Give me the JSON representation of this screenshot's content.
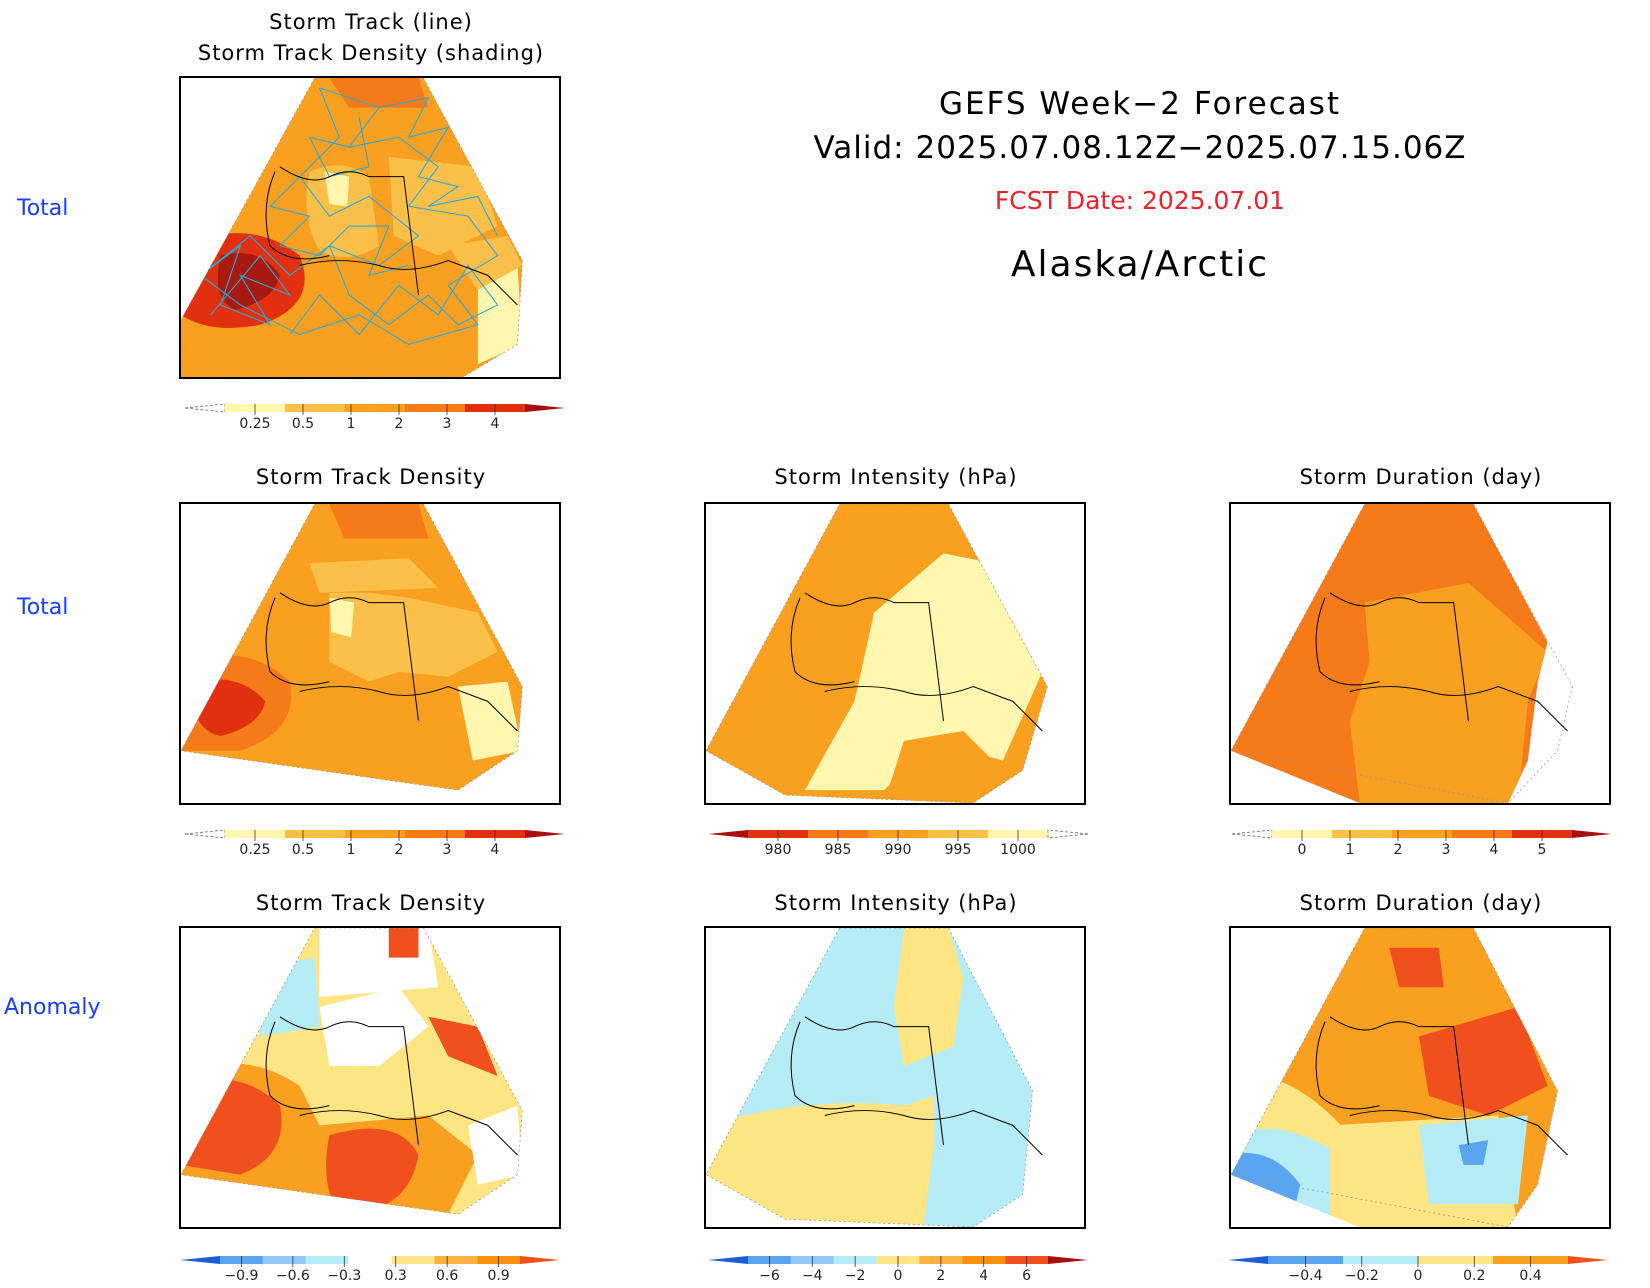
{
  "header": {
    "line1": "GEFS Week−2 Forecast",
    "line2": "Valid: 2025.07.08.12Z−2025.07.15.06Z",
    "fcst": "FCST Date: 2025.07.01",
    "region": "Alaska/Arctic",
    "fcst_color": "#e8232a"
  },
  "rows": {
    "row1": "Total",
    "row2": "Total",
    "row3": "Anomaly"
  },
  "panels": {
    "p0": {
      "title1": "Storm Track (line)",
      "title2": "Storm Track Density (shading)"
    },
    "p1": {
      "title": "Storm Track Density"
    },
    "p2": {
      "title": "Storm Intensity (hPa)"
    },
    "p3": {
      "title": "Storm Duration (day)"
    },
    "p4": {
      "title": "Storm Track Density"
    },
    "p5": {
      "title": "Storm Intensity (hPa)"
    },
    "p6": {
      "title": "Storm Duration (day)"
    }
  },
  "colorbars": {
    "density_total": {
      "ticks": [
        "0.25",
        "0.5",
        "1",
        "2",
        "3",
        "4"
      ],
      "colors": [
        "#ffffff",
        "#fff7b0",
        "#fbc04a",
        "#f9a020",
        "#f57a1a",
        "#e03010",
        "#a81010"
      ]
    },
    "intensity_total": {
      "ticks": [
        "980",
        "985",
        "990",
        "995",
        "1000"
      ],
      "colors": [
        "#a81010",
        "#e03010",
        "#f57a1a",
        "#f9a020",
        "#fbc04a",
        "#fff7b0",
        "#ffffff"
      ]
    },
    "duration_total": {
      "ticks": [
        "0",
        "1",
        "2",
        "3",
        "4",
        "5"
      ],
      "colors": [
        "#ffffff",
        "#fff7b0",
        "#fbc04a",
        "#f9a020",
        "#f57a1a",
        "#e03010",
        "#a81010"
      ]
    },
    "density_anom": {
      "ticks": [
        "−0.9",
        "−0.6",
        "−0.3",
        "0.3",
        "0.6",
        "0.9"
      ],
      "colors": [
        "#1e5fd8",
        "#5aa5f0",
        "#92c8f6",
        "#b5ecf6",
        "#ffffff",
        "#fde583",
        "#fbb040",
        "#f9900e",
        "#f0501e"
      ]
    },
    "intensity_anom": {
      "ticks": [
        "−6",
        "−4",
        "−2",
        "0",
        "2",
        "4",
        "6"
      ],
      "colors": [
        "#1e5fd8",
        "#5aa5f0",
        "#92c8f6",
        "#b5ecf6",
        "#fde583",
        "#fbb040",
        "#f9900e",
        "#f0501e",
        "#a81010"
      ]
    },
    "duration_anom": {
      "ticks": [
        "−0.4",
        "−0.2",
        "0",
        "0.2",
        "0.4"
      ],
      "colors": [
        "#1e5fd8",
        "#5aa5f0",
        "#b5ecf6",
        "#fde583",
        "#f9a020",
        "#f0501e"
      ]
    }
  }
}
